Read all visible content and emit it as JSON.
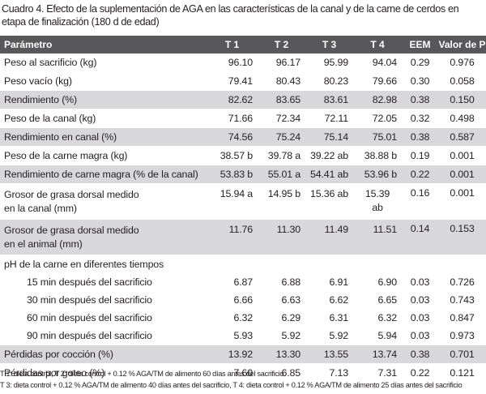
{
  "caption": "Cuadro 4. Efecto de la suplementación de AGA en las características de la canal y de la carne de cerdos en etapa de finalización (180 d de edad)",
  "headers": [
    "Parámetro",
    "T 1",
    "T 2",
    "T 3",
    "T 4",
    "EEM",
    "Valor de P"
  ],
  "rows": [
    {
      "label": "Peso al sacrificio (kg)",
      "t1": "96.10",
      "t2": "96.17",
      "t3": "95.99",
      "t4": "94.04",
      "eem": "0.29",
      "p": "0.976"
    },
    {
      "label": "Peso vacío (kg)",
      "t1": "79.41",
      "t2": "80.43",
      "t3": "80.23",
      "t4": "79.66",
      "eem": "0.30",
      "p": "0.058"
    },
    {
      "label": "Rendimiento (%)",
      "t1": "82.62",
      "t2": "83.65",
      "t3": "83.61",
      "t4": "82.98",
      "eem": "0.38",
      "p": "0.150"
    },
    {
      "label": "Peso de la canal (kg)",
      "t1": "71.66",
      "t2": "72.34",
      "t3": "72.11",
      "t4": "72.05",
      "eem": "0.32",
      "p": "0.498"
    },
    {
      "label": "Rendimiento en canal (%)",
      "t1": "74.56",
      "t2": "75.24",
      "t3": "75.14",
      "t4": "75.01",
      "eem": "0.38",
      "p": "0.587"
    },
    {
      "label": "Peso de la carne magra (kg)",
      "t1": "38.57 b",
      "t2": "39.78 a",
      "t3": "39.22 ab",
      "t4": "38.88 b",
      "eem": "0.19",
      "p": "0.001"
    },
    {
      "label": "Rendimiento de carne magra (% de la canal)",
      "t1": "53.83 b",
      "t2": "55.01 a",
      "t3": "54.41 ab",
      "t4": "53.96 b",
      "eem": "0.22",
      "p": "0.001"
    },
    {
      "label_line1": "Grosor de grasa dorsal medido",
      "label_line2": "en la canal (mm)",
      "t1": "15.94 a",
      "t2": "14.95 b",
      "t3": "15.36 ab",
      "t4_line1": "15.39",
      "t4_line2": "ab",
      "eem": "0.16",
      "p": "0.001"
    },
    {
      "label_line1": "Grosor de grasa dorsal medido",
      "label_line2": "en el animal (mm)",
      "t1": "11.76",
      "t2": "11.30",
      "t3": "11.49",
      "t4": "11.51",
      "eem": "0.14",
      "p": "0.153"
    },
    {
      "label": "pH de la carne en diferentes tiempos"
    },
    {
      "label": "15 min después del sacrificio",
      "t1": "6.87",
      "t2": "6.88",
      "t3": "6.91",
      "t4": "6.90",
      "eem": "0.03",
      "p": "0.726"
    },
    {
      "label": "30 min después del sacrificio",
      "t1": "6.66",
      "t2": "6.63",
      "t3": "6.62",
      "t4": "6.65",
      "eem": "0.03",
      "p": "0.743"
    },
    {
      "label": "60 min después del sacrificio",
      "t1": "6.32",
      "t2": "6.29",
      "t3": "6.31",
      "t4": "6.32",
      "eem": "0.03",
      "p": "0.847"
    },
    {
      "label": "90 min después del sacrificio",
      "t1": "5.93",
      "t2": "5.92",
      "t3": "5.92",
      "t4": "5.94",
      "eem": "0.03",
      "p": "0.973"
    },
    {
      "label": "Pérdidas por cocción (%)",
      "t1": "13.92",
      "t2": "13.30",
      "t3": "13.55",
      "t4": "13.74",
      "eem": "0.38",
      "p": "0.701"
    },
    {
      "label": "Pérdidas por goteo (%)",
      "t1": "7.60",
      "t2": "6.85",
      "t3": "7.13",
      "t4": "7.31",
      "eem": "0.22",
      "p": "0.121"
    }
  ],
  "footnotes": [
    "T 1: dieta control, T 2: dieta control + 0.12 % AGA/TM de alimento 60 días antes del sacrificio",
    "T 3: dieta control + 0.12 % AGA/TM de alimento 40 días antes del sacrificio, T 4: dieta control + 0.12 % AGA/TM de alimento 25 días antes del sacrificio"
  ],
  "colors": {
    "header_bg": "#58585a",
    "shade_bg": "#d8d8da",
    "text": "#231f20"
  }
}
